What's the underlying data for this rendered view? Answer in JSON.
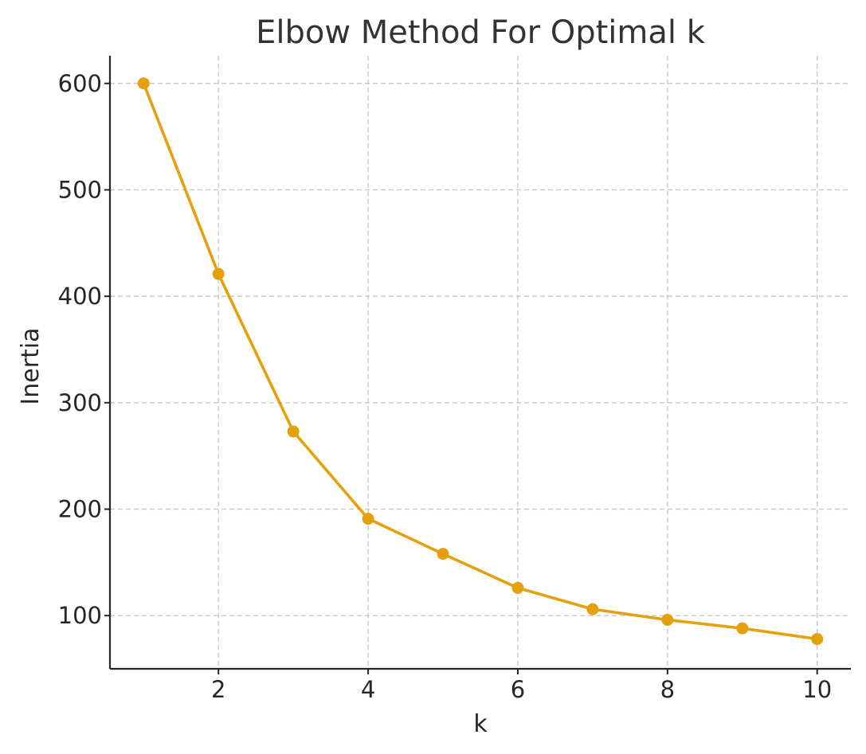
{
  "chart_data": {
    "type": "line",
    "title": "Elbow Method For Optimal k",
    "xlabel": "k",
    "ylabel": "Inertia",
    "x": [
      1,
      2,
      3,
      4,
      5,
      6,
      7,
      8,
      9,
      10
    ],
    "series": [
      {
        "values": [
          600,
          421,
          273,
          191,
          158,
          126,
          106,
          96,
          88,
          78
        ],
        "color": "#E5A00D",
        "marker": "circle"
      }
    ],
    "xticks": [
      2,
      4,
      6,
      8,
      10
    ],
    "yticks": [
      100,
      200,
      300,
      400,
      500,
      600
    ],
    "xlim": [
      0.55,
      10.45
    ],
    "ylim": [
      50,
      626
    ],
    "grid": true,
    "grid_style": "dashed",
    "spines": "left-bottom"
  }
}
